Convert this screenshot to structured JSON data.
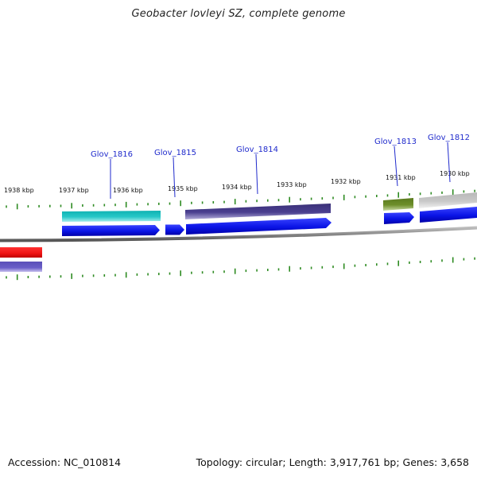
{
  "title": "Geobacter lovleyi SZ, complete genome",
  "footer": {
    "accession": "Accession: NC_010814",
    "summary": "Topology: circular; Length: 3,917,761 bp; Genes: 3,658"
  },
  "colors": {
    "tick": "#2e8b22",
    "genome_line": "#8a8a8a",
    "forward_gene": "#0a14e6",
    "gene_label": "#1f2acc",
    "cyan_feature": "#27c8c8",
    "indigo_feature": "#4a3f8f",
    "olive_feature": "#6e8f2a",
    "gray_feature": "#c4c4c4",
    "red_feature": "#ee1414",
    "lavender_feature": "#6a5fc8"
  },
  "scale_labels": [
    "1938 kbp",
    "1937 kbp",
    "1936 kbp",
    "1935 kbp",
    "1934 kbp",
    "1933 kbp",
    "1932 kbp",
    "1931 kbp",
    "1930 kbp"
  ],
  "gene_labels": [
    "Glov_1816",
    "Glov_1815",
    "Glov_1814",
    "Glov_1813",
    "Glov_1812"
  ],
  "features": [
    {
      "kind": "cyan_feature",
      "track": "outer"
    },
    {
      "kind": "indigo_feature",
      "track": "outer"
    },
    {
      "kind": "olive_feature",
      "track": "outer"
    },
    {
      "kind": "gray_feature",
      "track": "outer"
    },
    {
      "kind": "forward_gene",
      "track": "inner",
      "gene": "Glov_1816"
    },
    {
      "kind": "forward_gene",
      "track": "inner",
      "gene": "Glov_1815"
    },
    {
      "kind": "forward_gene",
      "track": "inner",
      "gene": "Glov_1814"
    },
    {
      "kind": "forward_gene",
      "track": "inner",
      "gene": "Glov_1813"
    },
    {
      "kind": "forward_gene",
      "track": "inner",
      "gene": "Glov_1812"
    },
    {
      "kind": "red_feature",
      "track": "lower"
    },
    {
      "kind": "lavender_feature",
      "track": "lower"
    }
  ]
}
